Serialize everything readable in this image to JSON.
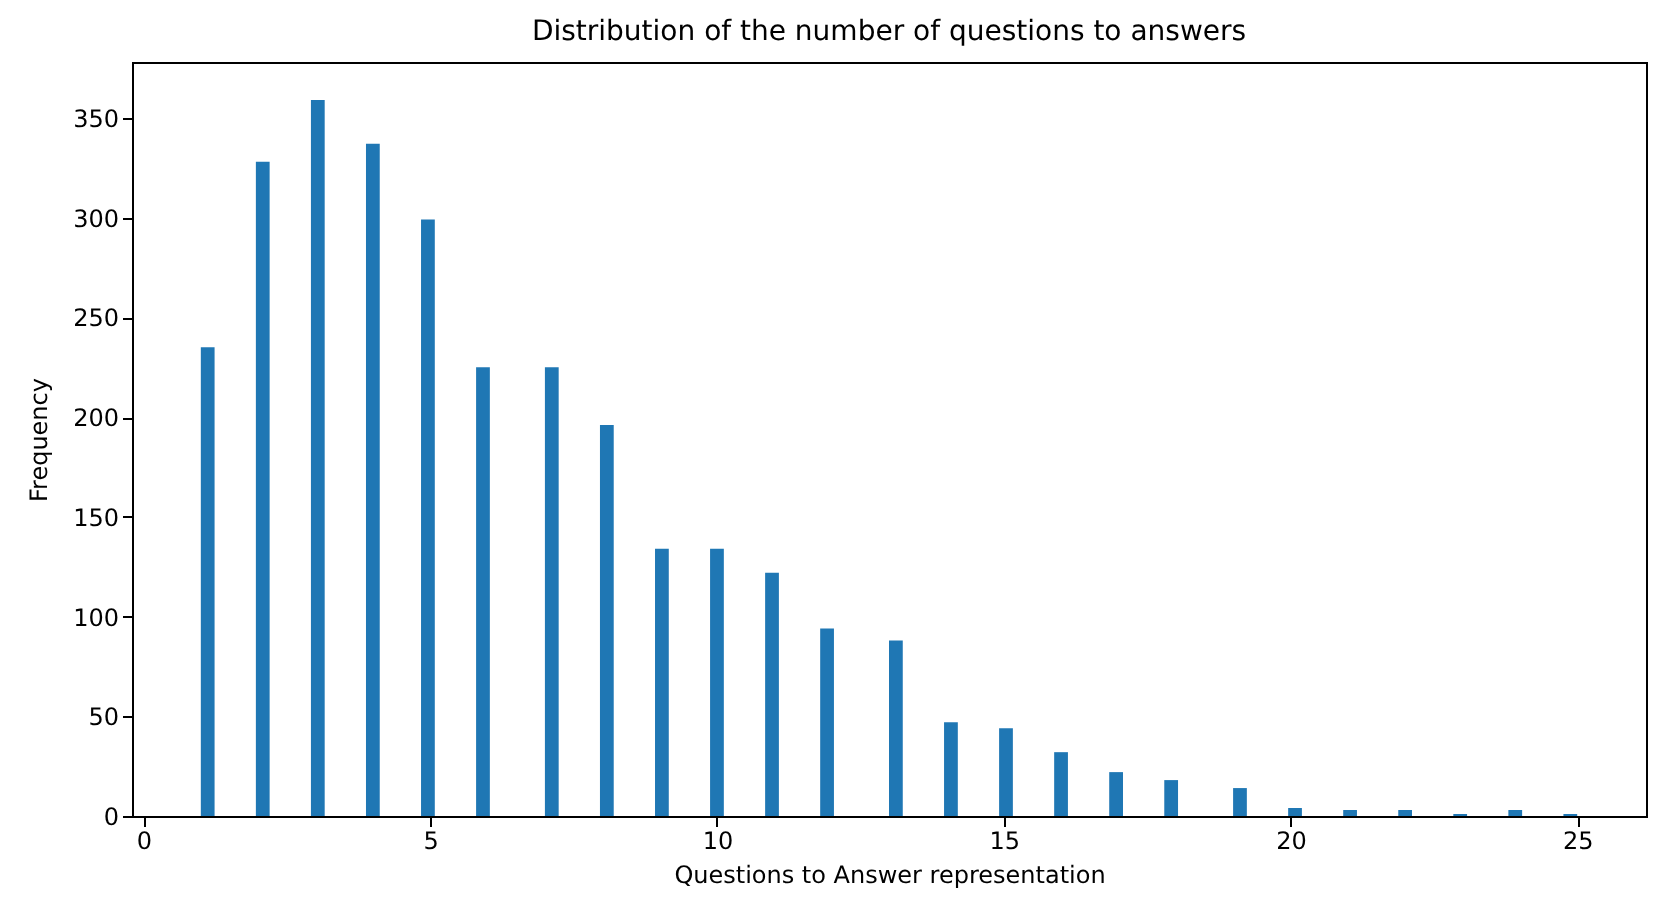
{
  "chart_data": {
    "type": "histogram",
    "title": "Distribution of the number of questions to answers",
    "xlabel": "Questions to Answer representation",
    "ylabel": "Frequency",
    "bins": [
      1,
      1.24,
      1.48,
      1.72,
      1.96,
      2.2,
      2.44,
      2.68,
      2.92,
      3.16,
      3.4,
      3.64,
      3.88,
      4.12,
      4.36,
      4.6,
      4.84,
      5.08,
      5.32,
      5.56,
      5.8,
      6.04,
      6.28,
      6.52,
      6.76,
      7,
      7.24,
      7.48,
      7.72,
      7.96,
      8.2,
      8.44,
      8.68,
      8.92,
      9.16,
      9.4,
      9.64,
      9.88,
      10.12,
      10.36,
      10.6,
      10.84,
      11.08,
      11.32,
      11.56,
      11.8,
      12.04,
      12.28,
      12.52,
      12.76,
      13,
      13.24,
      13.48,
      13.72,
      13.96,
      14.2,
      14.44,
      14.68,
      14.92,
      15.16,
      15.4,
      15.64,
      15.88,
      16.12,
      16.36,
      16.6,
      16.84,
      17.08,
      17.32,
      17.56,
      17.8,
      18.04,
      18.28,
      18.52,
      18.76,
      19,
      19.24,
      19.48,
      19.72,
      19.96,
      20.2,
      20.44,
      20.68,
      20.92,
      21.16,
      21.4,
      21.64,
      21.88,
      22.12,
      22.36,
      22.6,
      22.84,
      23.08,
      23.32,
      23.56,
      23.8,
      24.04,
      24.28,
      24.52,
      24.76,
      25
    ],
    "values": [
      235,
      0,
      0,
      0,
      328,
      0,
      0,
      0,
      359,
      0,
      0,
      0,
      337,
      0,
      0,
      0,
      299,
      0,
      0,
      0,
      225,
      0,
      0,
      0,
      0,
      225,
      0,
      0,
      0,
      196,
      0,
      0,
      0,
      134,
      0,
      0,
      0,
      134,
      0,
      0,
      0,
      122,
      0,
      0,
      0,
      94,
      0,
      0,
      0,
      0,
      88,
      0,
      0,
      0,
      47,
      0,
      0,
      0,
      44,
      0,
      0,
      0,
      32,
      0,
      0,
      0,
      22,
      0,
      0,
      0,
      18,
      0,
      0,
      0,
      0,
      14,
      0,
      0,
      0,
      4,
      0,
      0,
      0,
      3,
      0,
      0,
      0,
      3,
      0,
      0,
      0,
      1,
      0,
      0,
      0,
      3,
      0,
      0,
      0,
      1
    ],
    "color": "#1f77b4",
    "xlim": [
      -0.2,
      26.2
    ],
    "ylim": [
      0,
      378
    ],
    "xticks": [
      0,
      5,
      10,
      15,
      20,
      25
    ],
    "yticks": [
      0,
      50,
      100,
      150,
      200,
      250,
      300,
      350
    ],
    "grid": false,
    "legend": false
  }
}
